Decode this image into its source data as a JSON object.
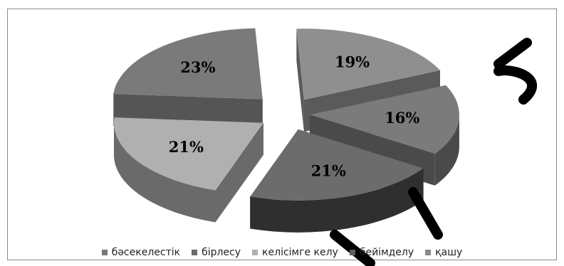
{
  "chart_data": {
    "type": "pie",
    "style": "3d-exploded",
    "title": "",
    "slices": [
      {
        "label": "бәсекелестік",
        "value": 19,
        "display": "19%",
        "color": "#8f8f8f",
        "side": "#5a5a5a"
      },
      {
        "label": "бірлесу",
        "value": 16,
        "display": "16%",
        "color": "#7b7b7b",
        "side": "#4a4a4a"
      },
      {
        "label": "келісімге келу",
        "value": 21,
        "display": "21%",
        "color": "#6c6c6c",
        "side": "#2f2f2f"
      },
      {
        "label": "бейімделу",
        "value": 21,
        "display": "21%",
        "color": "#b0b0b0",
        "side": "#6a6a6a"
      },
      {
        "label": "қашу",
        "value": 23,
        "display": "23%",
        "color": "#7a7a7a",
        "side": "#555555"
      }
    ],
    "legend_position": "bottom",
    "legend": [
      {
        "label": "бәсекелестік",
        "color": "#777777"
      },
      {
        "label": "бірлесу",
        "color": "#6a6a6a"
      },
      {
        "label": "келісімге келу",
        "color": "#b0b0b0"
      },
      {
        "label": "бейімделу",
        "color": "#5e5e5e"
      },
      {
        "label": "қашу",
        "color": "#8a8a8a"
      }
    ]
  }
}
